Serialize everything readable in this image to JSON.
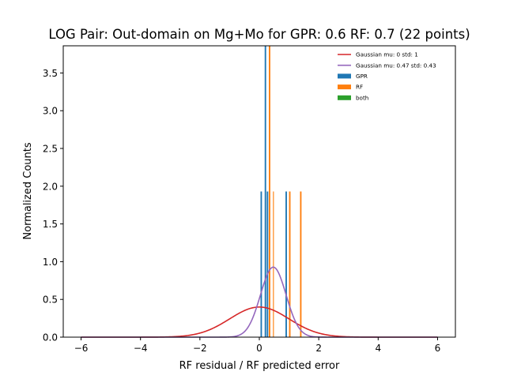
{
  "chart_data": {
    "type": "histogram",
    "title": "LOG Pair: Out-domain on Mg+Mo for GPR: 0.6 RF: 0.7 (22 points)",
    "xlabel": "RF residual / RF predicted error",
    "ylabel": "Normalized Counts",
    "xlim": [
      -6.6,
      6.6
    ],
    "ylim": [
      0,
      3.86
    ],
    "xticks": [
      -6,
      -4,
      -2,
      0,
      2,
      4,
      6
    ],
    "xtick_labels": [
      "−6",
      "−4",
      "−2",
      "0",
      "2",
      "4",
      "6"
    ],
    "yticks": [
      0.0,
      0.5,
      1.0,
      1.5,
      2.0,
      2.5,
      3.0,
      3.5
    ],
    "ytick_labels": [
      "0.0",
      "0.5",
      "1.0",
      "1.5",
      "2.0",
      "2.5",
      "3.0",
      "3.5"
    ],
    "grid": false,
    "legend_position": "top-right",
    "legend": [
      {
        "label": "Gaussian mu: 0 std: 1",
        "kind": "line",
        "color": "#d62728"
      },
      {
        "label": "Gaussian mu: 0.47 std: 0.43",
        "kind": "line",
        "color": "#9467bd"
      },
      {
        "label": "GPR",
        "kind": "patch",
        "color": "#1f77b4"
      },
      {
        "label": "RF",
        "kind": "patch",
        "color": "#ff7f0e"
      },
      {
        "label": "both",
        "kind": "patch",
        "color": "#2ca02c"
      }
    ],
    "curves": [
      {
        "name": "Gaussian mu: 0 std: 1",
        "mu": 0,
        "sigma": 1,
        "color": "#d62728"
      },
      {
        "name": "Gaussian mu: 0.47 std: 0.43",
        "mu": 0.47,
        "sigma": 0.43,
        "color": "#9467bd"
      }
    ],
    "bars": [
      {
        "series": "GPR",
        "x": 0.04,
        "width": 0.05,
        "value": 1.93,
        "color": "#1f77b4"
      },
      {
        "series": "GPR",
        "x": 0.18,
        "width": 0.05,
        "value": 3.86,
        "color": "#1f77b4"
      },
      {
        "series": "GPR",
        "x": 0.25,
        "width": 0.05,
        "value": 1.93,
        "color": "#1f77b4"
      },
      {
        "series": "GPR",
        "x": 0.88,
        "width": 0.05,
        "value": 1.93,
        "color": "#1f77b4"
      },
      {
        "series": "RF",
        "x": 0.32,
        "width": 0.05,
        "value": 3.86,
        "color": "#ff7f0e"
      },
      {
        "series": "RF",
        "x": 0.46,
        "width": 0.03,
        "value": 1.93,
        "color": "#ff7f0e"
      },
      {
        "series": "RF",
        "x": 1.0,
        "width": 0.05,
        "value": 1.93,
        "color": "#ff7f0e"
      },
      {
        "series": "RF",
        "x": 1.37,
        "width": 0.05,
        "value": 1.93,
        "color": "#ff7f0e"
      }
    ]
  }
}
